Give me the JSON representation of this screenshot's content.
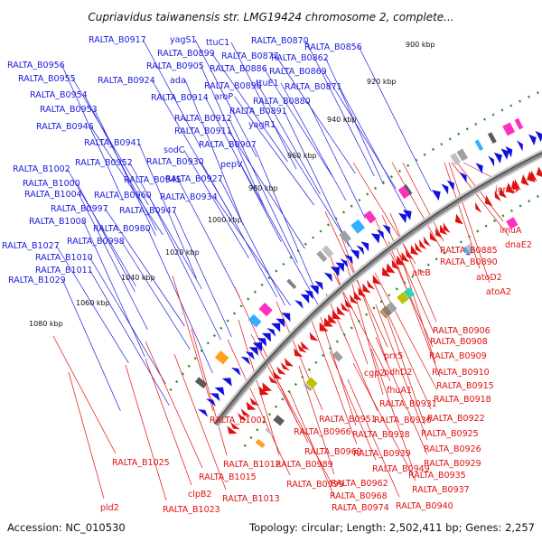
{
  "title": "Cupriavidus taiwanensis str. LMG19424 chromosome 2, complete...",
  "footer": {
    "accession": "Accession: NC_010530",
    "topology": "Topology: circular; Length: 2,502,411 bp; Genes: 2,257"
  },
  "colors": {
    "forward_label": "#1a1adc",
    "reverse_label": "#e01010",
    "forward_arrow": "#1010e0",
    "reverse_arrow": "#e01010",
    "backbone": "#8a8a8a",
    "tick_dot": "#2a8a2a"
  },
  "ticks": [
    "900 kbp",
    "920 kbp",
    "940 kbp",
    "960 kbp",
    "980 kbp",
    "1000 kbp",
    "1020 kbp",
    "1040 kbp",
    "1060 kbp",
    "1080 kbp"
  ],
  "forward_labels": [
    "RALTA_B0917",
    "yagS1",
    "ttuC1",
    "RALTA_B0870",
    "RALTA_B0856",
    "RALTA_B0899",
    "RALTA_B0877",
    "RALTA_B0862",
    "RALTA_B0956",
    "RALTA_B0905",
    "RALTA_B0886",
    "RALTA_B0869",
    "RALTA_B0955",
    "RALTA_B0924",
    "ada",
    "RALTA_B0898",
    "ttuE1",
    "RALTA_B0871",
    "RALTA_B0954",
    "RALTA_B0914",
    "aroP",
    "RALTA_B0880",
    "RALTA_B0953",
    "RALTA_B0891",
    "RALTA_B0912",
    "RALTA_B0946",
    "RALTA_B0911",
    "yagR1",
    "RALTA_B0941",
    "RALTA_B0907",
    "sodC",
    "RALTA_B1002",
    "RALTA_B0952",
    "RALTA_B0930",
    "pepV",
    "RALTA_B1000",
    "RALTA_B0945",
    "RALTA_B0927",
    "RALTA_B1004",
    "RALTA_B0960",
    "RALTA_B0934",
    "RALTA_B0997",
    "RALTA_B0947",
    "RALTA_B1008",
    "RALTA_B0980",
    "RALTA_B0998",
    "RALTA_B1027",
    "RALTA_B1010",
    "RALTA_B1011",
    "RALTA_B1029"
  ],
  "reverse_labels": [
    "iorAB",
    "RALTA_B0885",
    "imuA",
    "RALTA_B0890",
    "dnaE2",
    "aleB",
    "atoD2",
    "atoA2",
    "RALTA_B0906",
    "RALTA_B0908",
    "RALTA_B0909",
    "prx5",
    "RALTA_B0910",
    "cgp2",
    "pdhD2",
    "RALTA_B0915",
    "fhuA1",
    "RALTA_B0918",
    "RALTA_B0931",
    "RALTA_B1001",
    "RALTA_B0951",
    "RALTA_B0936",
    "RALTA_B0922",
    "RALTA_B0966",
    "RALTA_B0938",
    "RALTA_B0925",
    "RALTA_B0939",
    "RALTA_B0926",
    "RALTA_B0969",
    "RALTA_B1025",
    "RALTA_B1012",
    "RALTA_B0989",
    "RALTA_B0949",
    "RALTA_B0929",
    "RALTA_B1015",
    "RALTA_B0999",
    "RALTA_B0962",
    "RALTA_B0935",
    "clpB2",
    "RALTA_B1013",
    "RALTA_B0968",
    "RALTA_B0937",
    "pld2",
    "RALTA_B1023",
    "RALTA_B0974",
    "RALTA_B0940"
  ]
}
